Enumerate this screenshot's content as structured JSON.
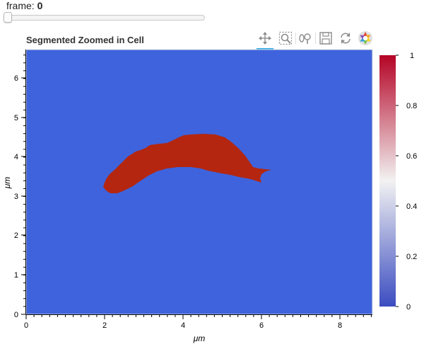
{
  "slider": {
    "label": "frame:",
    "value": "0",
    "min": 0,
    "max": 100,
    "current": 0
  },
  "plot": {
    "title": "Segmented Zoomed in Cell",
    "xlabel": "μm",
    "ylabel": "μm",
    "background_color": "#3f63dc",
    "cell_color": "#b4260f",
    "x_ticks": [
      "0",
      "2",
      "4",
      "6",
      "8"
    ],
    "y_ticks": [
      "0",
      "1",
      "2",
      "3",
      "4",
      "5",
      "6"
    ],
    "xlim": [
      0,
      8.85
    ],
    "ylim": [
      0,
      6.75
    ]
  },
  "colorbar": {
    "ticks": [
      "0",
      "0.2",
      "0.4",
      "0.6",
      "0.8",
      "1"
    ],
    "colors": [
      "#3b4cc0",
      "#f2f2f2",
      "#b40426"
    ],
    "range": [
      0,
      1
    ]
  },
  "toolbar": {
    "tools": [
      {
        "name": "pan-icon",
        "active": true
      },
      {
        "name": "box-zoom-icon",
        "active": false
      },
      {
        "name": "wheel-zoom-icon",
        "active": false
      },
      {
        "name": "save-icon",
        "active": false
      },
      {
        "name": "reset-icon",
        "active": false
      },
      {
        "name": "bokeh-logo-icon",
        "active": false
      }
    ]
  }
}
